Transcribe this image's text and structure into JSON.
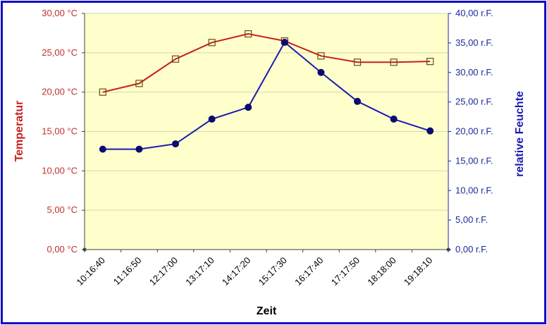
{
  "chart_data": {
    "type": "line",
    "categories": [
      "10:16:40",
      "11:16:50",
      "12:17:00",
      "13:17:10",
      "14:17:20",
      "15:17:30",
      "16:17:40",
      "17:17:50",
      "18:18:00",
      "19:18:10"
    ],
    "xlabel": "Zeit",
    "ylabel_left": "Temperatur",
    "ylabel_right": "relative Feuchte",
    "ylim_left": [
      0,
      30
    ],
    "ylim_right": [
      0,
      40
    ],
    "yticks_left": [
      "0,00 °C",
      "5,00 °C",
      "10,00 °C",
      "15,00 °C",
      "20,00 °C",
      "25,00 °C",
      "30,00 °C"
    ],
    "yticks_right": [
      "0,00 r.F.",
      "5,00 r.F.",
      "10,00 r.F.",
      "15,00 r.F.",
      "20,00 r.F.",
      "25,00 r.F.",
      "30,00 r.F.",
      "35,00 r.F.",
      "40,00 r.F."
    ],
    "grid": true,
    "series": [
      {
        "axis": "left",
        "color": "#c81e1e",
        "marker": "square-open",
        "values": [
          20.0,
          21.1,
          24.2,
          26.3,
          27.4,
          26.5,
          24.6,
          23.8,
          23.8,
          23.9
        ]
      },
      {
        "axis": "right",
        "color": "#1a1ab0",
        "marker": "circle-filled",
        "values": [
          17.0,
          17.0,
          17.9,
          22.1,
          24.1,
          35.1,
          30.0,
          25.1,
          22.1,
          20.1
        ]
      }
    ],
    "colors": {
      "plot_bg": "#ffffcc",
      "grid": "#d8d8a8",
      "frame": "#1010c8"
    }
  }
}
